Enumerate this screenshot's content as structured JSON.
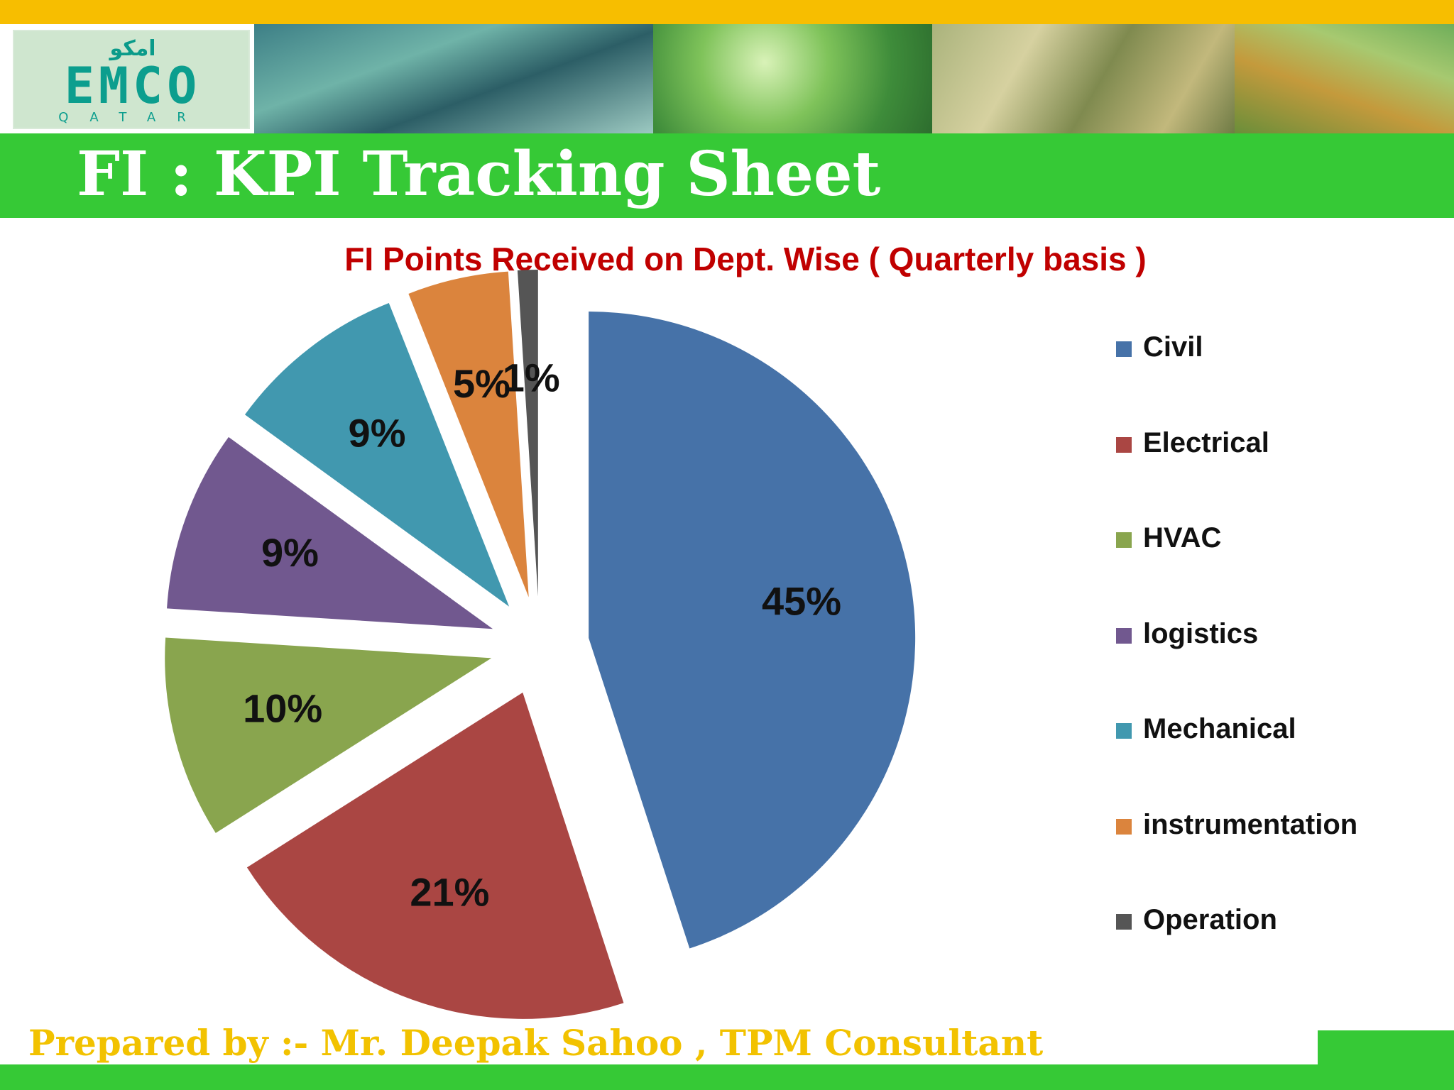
{
  "header": {
    "logo_arabic": "امكو",
    "logo_main": "EMCO",
    "logo_sub": "QATAR",
    "title": "FI : KPI Tracking Sheet"
  },
  "colors": {
    "top_strip": "#f7be00",
    "title_bar": "#36c936",
    "chart_title": "#c00000",
    "footer_text": "#f2c200"
  },
  "chart_data": {
    "type": "pie",
    "title": "FI Points Received on Dept. Wise ( Quarterly basis )",
    "exploded": true,
    "legend_position": "right",
    "slices": [
      {
        "name": "Civil",
        "value": 45,
        "label": "45%",
        "color": "#4672a8"
      },
      {
        "name": "Electrical",
        "value": 21,
        "label": "21%",
        "color": "#aa4643"
      },
      {
        "name": "HVAC",
        "value": 10,
        "label": "10%",
        "color": "#89a54e"
      },
      {
        "name": "logistics",
        "value": 9,
        "label": "9%",
        "color": "#71588f"
      },
      {
        "name": "Mechanical",
        "value": 9,
        "label": "9%",
        "color": "#4198af"
      },
      {
        "name": "instrumentation",
        "value": 5,
        "label": "5%",
        "color": "#db843d"
      },
      {
        "name": "Operation",
        "value": 1,
        "label": "1%",
        "color": "#555555"
      }
    ]
  },
  "footer": {
    "prepared_by": "Prepared by :- Mr. Deepak  Sahoo , TPM Consultant"
  }
}
